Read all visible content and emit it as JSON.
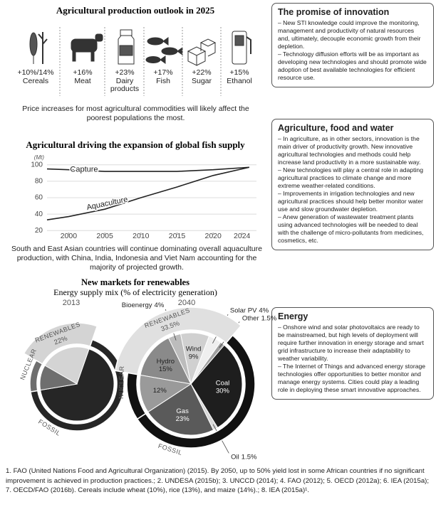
{
  "outlook": {
    "title": "Agricultural production outlook in 2025",
    "items": [
      {
        "value": "+10%/14%",
        "label": "Cereals"
      },
      {
        "value": "+16%",
        "label": "Meat"
      },
      {
        "value": "+23%",
        "label": "Dairy products"
      },
      {
        "value": "+17%",
        "label": "Fish"
      },
      {
        "value": "+22%",
        "label": "Sugar"
      },
      {
        "value": "+15%",
        "label": "Ethanol"
      }
    ],
    "note": "Price increases for most agricultural commodities will likely affect the poorest populations the most."
  },
  "chart_data": [
    {
      "type": "line",
      "title": "Agricultural driving the expansion of global fish supply",
      "y_unit": "(Mt)",
      "x": [
        1997,
        2000,
        2005,
        2010,
        2015,
        2020,
        2025
      ],
      "series": [
        {
          "name": "Capture",
          "color": "#222222",
          "values": [
            95,
            94,
            92,
            92,
            92,
            94,
            97
          ]
        },
        {
          "name": "Aquaculture",
          "color": "#222222",
          "values": [
            33,
            37,
            46,
            60,
            73,
            87,
            97
          ]
        }
      ],
      "xlim": [
        1997,
        2026
      ],
      "ylim": [
        15,
        105
      ],
      "xticks": [
        2000,
        2005,
        2010,
        2015,
        2020,
        2024
      ],
      "yticks": [
        20,
        40,
        60,
        80,
        100
      ],
      "grid": true
    },
    {
      "type": "pie",
      "title": "2013",
      "groups": [
        {
          "name": "RENEWABLES",
          "value": 22,
          "value_label": "22%",
          "color": "#d4d4d4"
        },
        {
          "name": "FOSSIL",
          "value": 67,
          "color": "#262626"
        },
        {
          "name": "NUCLEAR",
          "value": 11,
          "color": "#6e6e6e"
        }
      ]
    },
    {
      "type": "pie",
      "title": "2040",
      "groups": [
        {
          "name": "RENEWABLES",
          "value": 33.5,
          "value_label": "33.5%",
          "color": "#e0e0e0",
          "slices": [
            {
              "name": "Hydro",
              "value": 15,
              "value_label": "15%",
              "color": "#8a8a8a"
            },
            {
              "name": "Bioenergy",
              "value": 4,
              "value_label": "4%",
              "color": "#bcbcbc"
            },
            {
              "name": "Wind",
              "value": 9,
              "value_label": "9%",
              "color": "#d0d0d0"
            },
            {
              "name": "Solar PV",
              "value": 4,
              "value_label": "4%",
              "color": "#efefef"
            },
            {
              "name": "Other",
              "value": 1.5,
              "value_label": "1.5%",
              "color": "#a0a0a0"
            }
          ]
        },
        {
          "name": "FOSSIL",
          "color": "#111111",
          "slices": [
            {
              "name": "Coal",
              "value": 30,
              "value_label": "30%",
              "color": "#1e1e1e"
            },
            {
              "name": "Oil",
              "value": 1.5,
              "value_label": "1.5%",
              "color": "#d8d8d8"
            },
            {
              "name": "Gas",
              "value": 23,
              "value_label": "23%",
              "color": "#5a5a5a"
            }
          ]
        },
        {
          "name": "NUCLEAR",
          "color": "#111111",
          "slices": [
            {
              "name": null,
              "value": 12,
              "value_label": "12%",
              "color": "#9a9a9a"
            }
          ]
        }
      ]
    }
  ],
  "fish_note": "South and East Asian countries will continue dominating overall aquaculture production, with China, India, Indonesia and Viet Nam accounting for the majority of projected growth.",
  "renewables": {
    "title": "New markets for renewables",
    "subtitle": "Energy supply mix (% of electricity generation)"
  },
  "boxes": [
    {
      "title": "The promise of innovation",
      "paragraphs": [
        "– New STI knowledge could improve the monitoring, management and productivity of natural resources and, ultimately, decouple economic growth from their depletion.",
        "– Technology diffusion efforts will be as important as developing new technologies and should promote wide adoption of best available technologies for efficient resource use."
      ]
    },
    {
      "title": "Agriculture, food and water",
      "paragraphs": [
        "– In agriculture, as in other sectors, innovation is the main driver of productivity growth. New innovative agricultural technologies and methods could help increase land productivity in a more sustainable way.",
        "– New technologies will play a central role in adapting agricultural practices to climate change and more extreme weather-related conditions.",
        "– Improvements in irrigation technologies and new agricultural practices should help better monitor water use and slow groundwater depletion.",
        "– Anew generation of wastewater treatment plants using advanced technologies will be needed to deal with the challenge of micro-pollutants from medicines, cosmetics, etc."
      ]
    },
    {
      "title": "Energy",
      "paragraphs": [
        "– Onshore wind and solar photovoltaics are ready to be mainstreamed, but high levels of deployment will require further innovation in energy storage and smart grid infrastructure to increase their adaptability to weather variability.",
        "– The Internet of Things and advanced energy storage technologies offer opportunities to better monitor and manage energy systems. Cities could play a leading role in deploying these smart innovative approaches."
      ]
    }
  ],
  "footnote": "1. FAO (United Nations Food and Agricultural Organization) (2015). By 2050, up to 50% yield lost in some African countries if no significant improvement is achieved in production practices.; 2. UNDESA (2015b); 3. UNCCD (2014); 4. FAO (2012); 5. OECD (2012a); 6. IEA (2015a); 7. OECD/FAO (2016b). Cereals include wheat (10%), rice (13%), and maize (14%).; 8. IEA (2015a)¹."
}
